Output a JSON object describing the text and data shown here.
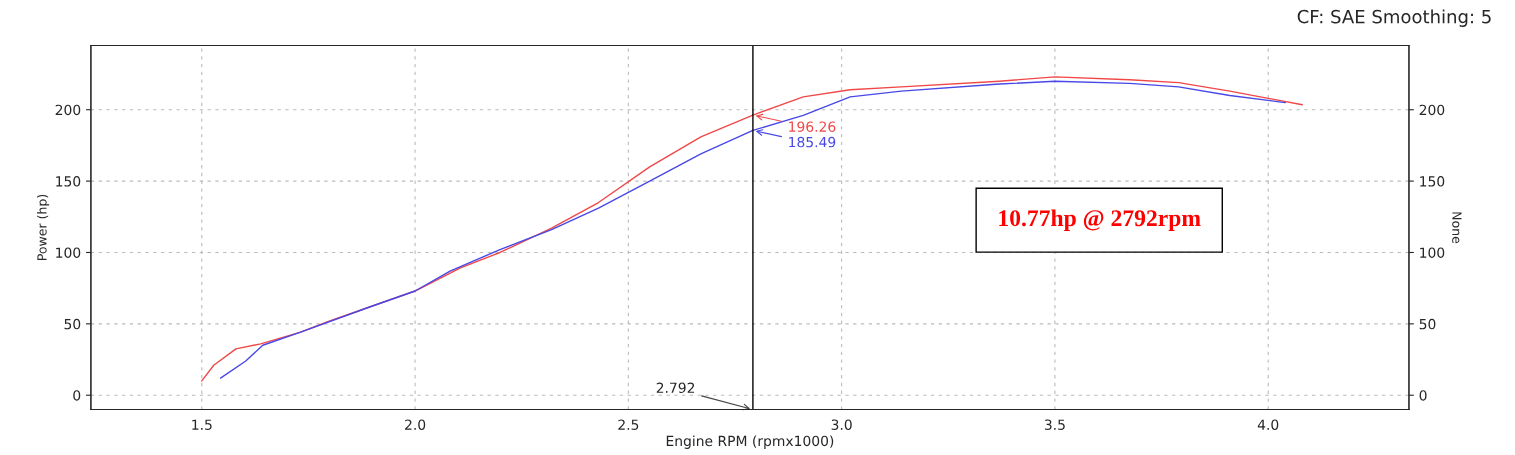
{
  "chart_data": {
    "type": "line",
    "subtitle": "CF: SAE Smoothing: 5",
    "xlabel": "Engine RPM (rpmx1000)",
    "ylabel": "Power (hp)",
    "y2label": "None",
    "series": [
      {
        "color": "#f04848",
        "x": [
          1.5,
          1.528,
          1.58,
          1.638,
          1.73,
          1.8,
          1.895,
          2.0,
          2.105,
          2.199,
          2.32,
          2.43,
          2.55,
          2.67,
          2.792,
          2.91,
          3.02,
          3.14,
          3.37,
          3.5,
          3.675,
          3.79,
          3.91,
          4.0,
          4.08
        ],
        "values": [
          10,
          21,
          32.5,
          36,
          44,
          52,
          62,
          73,
          89,
          100,
          117,
          135,
          160,
          181,
          196.26,
          209,
          214,
          216,
          220,
          223,
          221,
          219,
          213,
          208,
          203.5
        ]
      },
      {
        "color": "#4848e8",
        "x": [
          1.544,
          1.603,
          1.643,
          1.73,
          1.895,
          2.0,
          2.082,
          2.199,
          2.32,
          2.43,
          2.55,
          2.67,
          2.792,
          2.91,
          3.02,
          3.14,
          3.37,
          3.5,
          3.675,
          3.79,
          3.91,
          4.04
        ],
        "values": [
          12,
          24,
          35,
          44,
          62,
          73,
          87,
          102,
          116,
          131,
          150,
          169,
          185.49,
          196,
          209,
          213,
          218,
          220,
          218.5,
          216,
          210,
          205
        ]
      }
    ],
    "annotations": [
      {
        "text": "196.26",
        "x": 2.792,
        "y": 196.26
      },
      {
        "text": "185.49",
        "x": 2.792,
        "y": 185.49
      },
      "10.77hp @ 2792rpm"
    ],
    "ref_lines": [
      {
        "axis": "x",
        "value": 2.792,
        "label": "2.792",
        "color": "#000000"
      }
    ],
    "xlim": [
      1.24,
      4.33
    ],
    "xticks": [
      {
        "value": 1.5,
        "label": "1.5"
      },
      {
        "value": 2.0,
        "label": "2.0"
      },
      {
        "value": 2.5,
        "label": "2.5"
      },
      {
        "value": 3.0,
        "label": "3.0"
      },
      {
        "value": 3.5,
        "label": "3.5"
      },
      {
        "value": 4.0,
        "label": "4.0"
      }
    ],
    "ylim": [
      -10,
      245
    ],
    "yticks": [
      0,
      50,
      100,
      150,
      200
    ],
    "y2lim": [
      -10,
      245
    ],
    "y2ticks": [
      0,
      50,
      100,
      150,
      200
    ],
    "grid": true,
    "marker": "none",
    "line_style": "solid",
    "legend": false
  }
}
